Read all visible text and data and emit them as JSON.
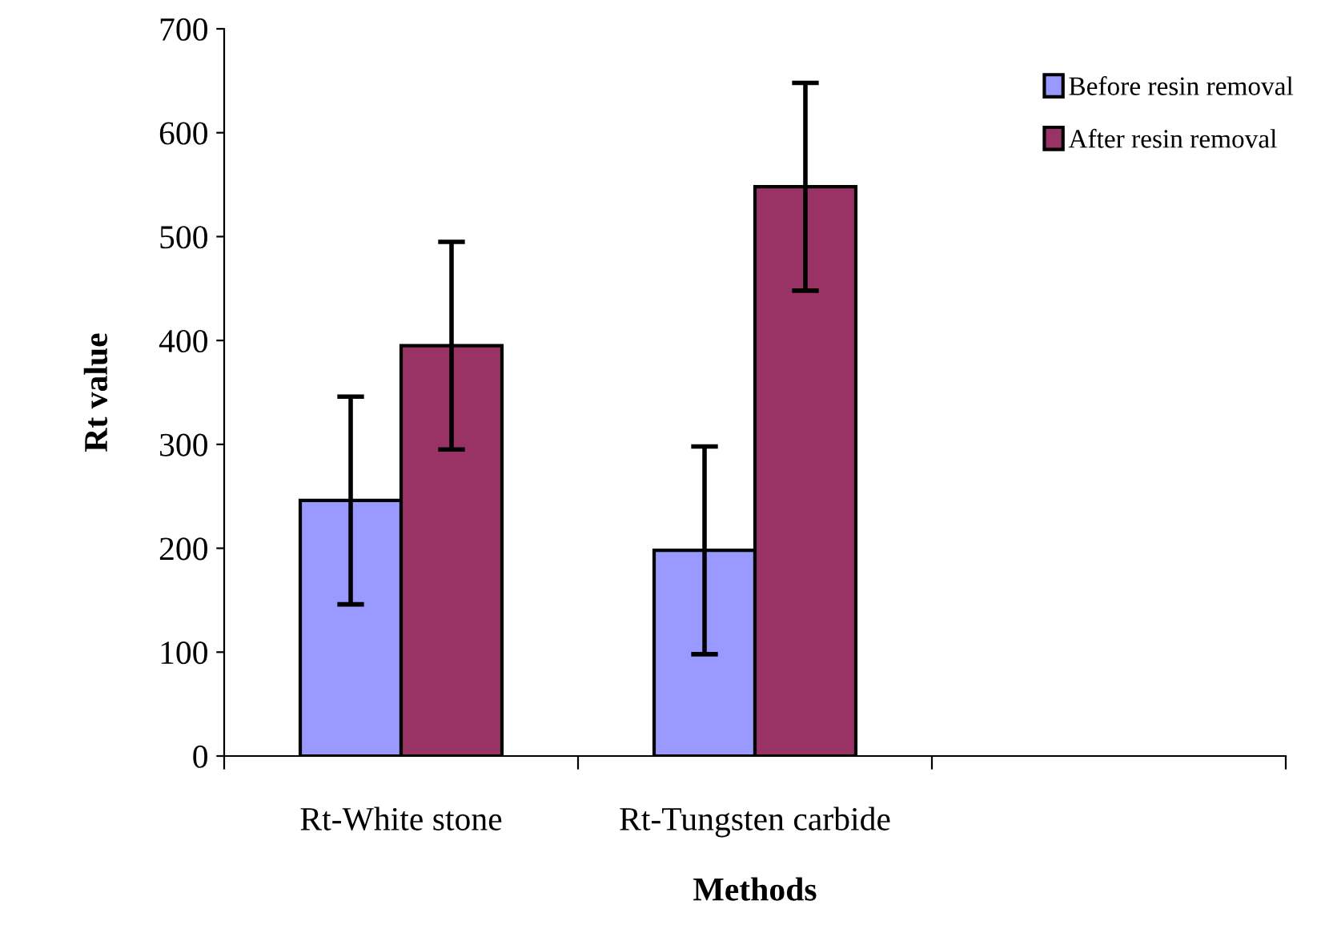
{
  "chart_data": {
    "type": "bar",
    "xlabel": "Methods",
    "ylabel": "Rt value",
    "categories": [
      "Rt-White stone",
      "Rt-Tungsten carbide",
      null
    ],
    "series": [
      {
        "name": "Before resin removal",
        "color": "#9999ff",
        "values": [
          246,
          198,
          null
        ],
        "errors": [
          100,
          100,
          null
        ]
      },
      {
        "name": "After resin removal",
        "color": "#993366",
        "values": [
          395,
          548,
          null
        ],
        "errors": [
          100,
          100,
          null
        ]
      }
    ],
    "ylim": [
      0,
      700
    ],
    "yticks": [
      0,
      100,
      200,
      300,
      400,
      500,
      600,
      700
    ],
    "grid": false,
    "legend": "top right"
  }
}
